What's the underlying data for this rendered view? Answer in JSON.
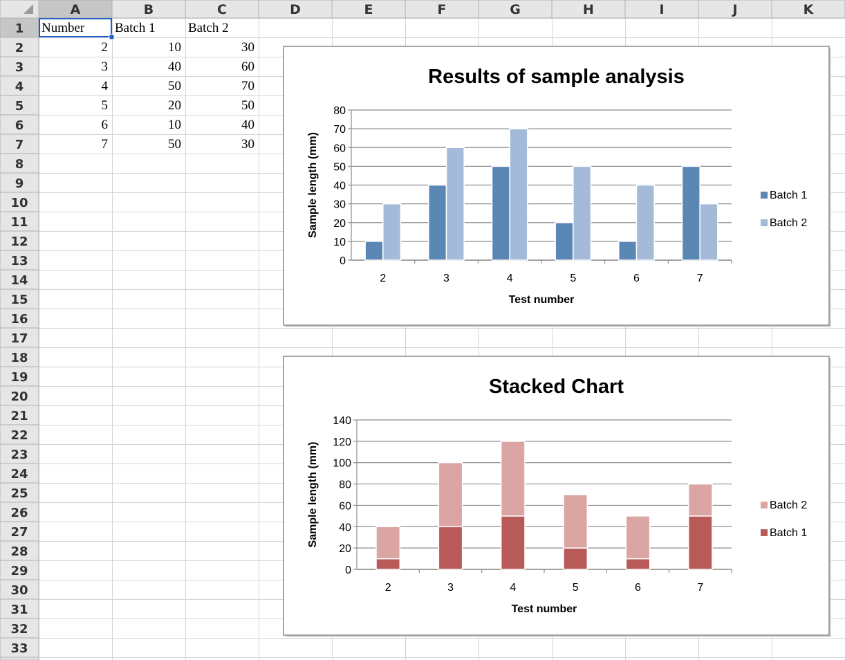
{
  "sheet": {
    "columns": [
      "A",
      "B",
      "C",
      "D",
      "E",
      "F",
      "G",
      "H",
      "I",
      "J",
      "K"
    ],
    "rows": [
      "1",
      "2",
      "3",
      "4",
      "5",
      "6",
      "7",
      "8",
      "9",
      "10",
      "11",
      "12",
      "13",
      "14",
      "15",
      "16",
      "17",
      "18",
      "19",
      "20",
      "21",
      "22",
      "23",
      "24",
      "25",
      "26",
      "27",
      "28",
      "29",
      "30",
      "31",
      "32",
      "33"
    ],
    "cells": {
      "header": [
        "Number",
        "Batch 1",
        "Batch 2"
      ],
      "data": [
        [
          "2",
          "10",
          "30"
        ],
        [
          "3",
          "40",
          "60"
        ],
        [
          "4",
          "50",
          "70"
        ],
        [
          "5",
          "20",
          "50"
        ],
        [
          "6",
          "10",
          "40"
        ],
        [
          "7",
          "50",
          "30"
        ]
      ]
    },
    "colors": {
      "grid": "#d4d4d4",
      "header_bg": "#e6e6e6",
      "selected_header_bg": "#c6c6c6",
      "selection": "#1f5fcf"
    }
  },
  "chart_data": [
    {
      "type": "bar",
      "title": "Results of sample analysis",
      "xlabel": "Test number",
      "ylabel": "Sample length (mm)",
      "categories": [
        "2",
        "3",
        "4",
        "5",
        "6",
        "7"
      ],
      "series": [
        {
          "name": "Batch 1",
          "values": [
            10,
            40,
            50,
            20,
            10,
            50
          ],
          "color": "#5b87b4"
        },
        {
          "name": "Batch 2",
          "values": [
            30,
            60,
            70,
            50,
            40,
            30
          ],
          "color": "#a5bad9"
        }
      ],
      "ylim": [
        0,
        80
      ],
      "yticks": [
        "0",
        "10",
        "20",
        "30",
        "40",
        "50",
        "60",
        "70",
        "80"
      ],
      "grid": true,
      "legend": "right"
    },
    {
      "type": "bar",
      "stacked": true,
      "title": "Stacked Chart",
      "xlabel": "Test number",
      "ylabel": "Sample length (mm)",
      "categories": [
        "2",
        "3",
        "4",
        "5",
        "6",
        "7"
      ],
      "series": [
        {
          "name": "Batch 1",
          "values": [
            10,
            40,
            50,
            20,
            10,
            50
          ],
          "color": "#b85b58"
        },
        {
          "name": "Batch 2",
          "values": [
            30,
            60,
            70,
            50,
            40,
            30
          ],
          "color": "#dba5a4"
        }
      ],
      "legend_order": [
        "Batch 2",
        "Batch 1"
      ],
      "ylim": [
        0,
        140
      ],
      "yticks": [
        "0",
        "20",
        "40",
        "60",
        "80",
        "100",
        "120",
        "140"
      ],
      "grid": true,
      "legend": "right"
    }
  ]
}
